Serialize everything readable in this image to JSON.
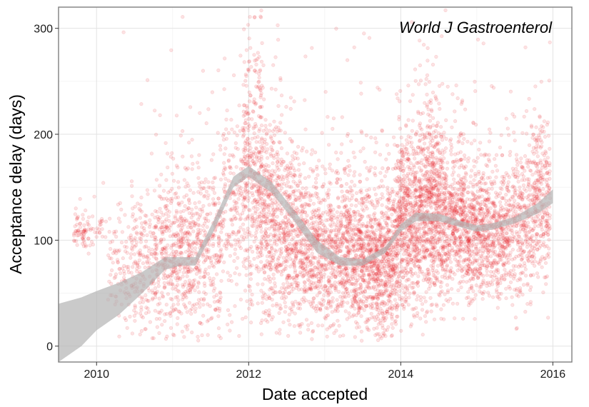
{
  "chart_data": {
    "type": "scatter",
    "title": "",
    "annotation": "World J Gastroenterol",
    "xlabel": "Date accepted",
    "ylabel": "Acceptance delay (days)",
    "xlim": [
      2009.5,
      2016.25
    ],
    "ylim": [
      -15,
      320
    ],
    "xticks": [
      2010,
      2012,
      2014,
      2016
    ],
    "xtick_labels": [
      "2010",
      "2012",
      "2014",
      "2016"
    ],
    "yticks": [
      0,
      100,
      200,
      300
    ],
    "ytick_labels": [
      "0",
      "100",
      "200",
      "300"
    ],
    "grid": true,
    "legend": "none",
    "point_color": "#e8141c",
    "point_alpha": 0.12,
    "smooth_color": "#b3b3b3",
    "density_profile": [
      {
        "x": 2009.8,
        "median": 110,
        "spread": 10,
        "weight": 2
      },
      {
        "x": 2010.0,
        "median": 110,
        "spread": 8,
        "weight": 1
      },
      {
        "x": 2010.3,
        "median": 70,
        "spread": 25,
        "weight": 3
      },
      {
        "x": 2010.6,
        "median": 70,
        "spread": 35,
        "weight": 6
      },
      {
        "x": 2010.9,
        "median": 80,
        "spread": 40,
        "weight": 9
      },
      {
        "x": 2011.2,
        "median": 85,
        "spread": 40,
        "weight": 10
      },
      {
        "x": 2011.5,
        "median": 90,
        "spread": 40,
        "weight": 8
      },
      {
        "x": 2011.8,
        "median": 130,
        "spread": 45,
        "weight": 6
      },
      {
        "x": 2012.05,
        "median": 160,
        "spread": 60,
        "weight": 12
      },
      {
        "x": 2012.3,
        "median": 120,
        "spread": 50,
        "weight": 14
      },
      {
        "x": 2012.6,
        "median": 100,
        "spread": 40,
        "weight": 14
      },
      {
        "x": 2012.9,
        "median": 90,
        "spread": 35,
        "weight": 12
      },
      {
        "x": 2013.2,
        "median": 85,
        "spread": 35,
        "weight": 14
      },
      {
        "x": 2013.5,
        "median": 80,
        "spread": 35,
        "weight": 16
      },
      {
        "x": 2013.8,
        "median": 80,
        "spread": 35,
        "weight": 18
      },
      {
        "x": 2014.1,
        "median": 115,
        "spread": 40,
        "weight": 20
      },
      {
        "x": 2014.4,
        "median": 130,
        "spread": 45,
        "weight": 22
      },
      {
        "x": 2014.7,
        "median": 115,
        "spread": 35,
        "weight": 16
      },
      {
        "x": 2015.0,
        "median": 105,
        "spread": 30,
        "weight": 15
      },
      {
        "x": 2015.3,
        "median": 105,
        "spread": 30,
        "weight": 12
      },
      {
        "x": 2015.6,
        "median": 115,
        "spread": 35,
        "weight": 10
      },
      {
        "x": 2015.85,
        "median": 135,
        "spread": 35,
        "weight": 9
      }
    ],
    "smooth": {
      "x": [
        2009.5,
        2009.8,
        2010.0,
        2010.3,
        2010.6,
        2010.9,
        2011.1,
        2011.3,
        2011.55,
        2011.8,
        2012.0,
        2012.3,
        2012.6,
        2012.9,
        2013.2,
        2013.5,
        2013.8,
        2014.0,
        2014.2,
        2014.5,
        2014.8,
        2015.0,
        2015.2,
        2015.5,
        2015.8,
        2016.0
      ],
      "upper": [
        40,
        46,
        52,
        60,
        70,
        84,
        84,
        84,
        120,
        160,
        170,
        155,
        128,
        100,
        84,
        82,
        94,
        115,
        126,
        125,
        118,
        114,
        116,
        122,
        135,
        148
      ],
      "lower": [
        -15,
        0,
        15,
        30,
        50,
        72,
        76,
        76,
        110,
        150,
        160,
        145,
        118,
        88,
        76,
        76,
        88,
        108,
        118,
        118,
        112,
        108,
        110,
        116,
        125,
        135
      ]
    }
  }
}
